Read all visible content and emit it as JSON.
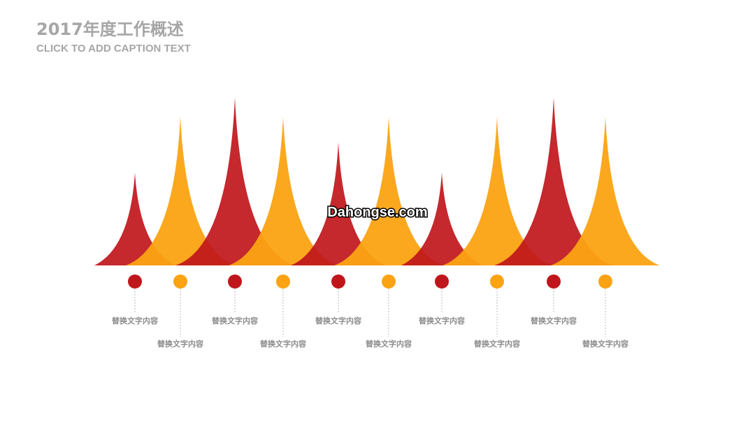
{
  "header": {
    "title": "2017年度工作概述",
    "caption": "CLICK TO ADD CAPTION TEXT"
  },
  "items": [
    {
      "label": "替换文字内容"
    },
    {
      "label": "替换文字内容"
    },
    {
      "label": "替换文字内容"
    },
    {
      "label": "替换文字内容"
    },
    {
      "label": "替换文字内容"
    },
    {
      "label": "替换文字内容"
    },
    {
      "label": "替换文字内容"
    },
    {
      "label": "替换文字内容"
    },
    {
      "label": "替换文字内容"
    },
    {
      "label": "替换文字内容"
    }
  ],
  "watermark": "Dahongse.com"
}
